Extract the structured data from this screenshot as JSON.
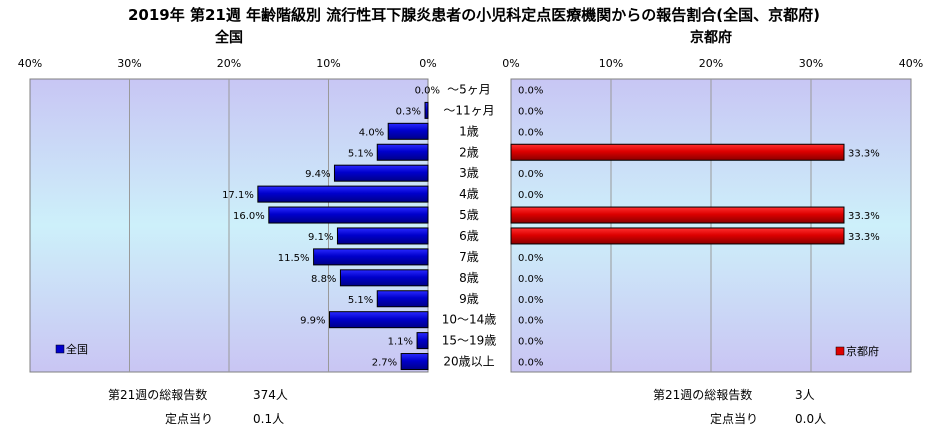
{
  "title": "2019年 第21週 年齢階級別 流行性耳下腺炎患者の小児科定点医療機関からの報告割合(全国、京都府)",
  "chart_data": {
    "type": "bar",
    "orientation": "horizontal",
    "categories": [
      "～5ヶ月",
      "～11ヶ月",
      "1歳",
      "2歳",
      "3歳",
      "4歳",
      "5歳",
      "6歳",
      "7歳",
      "8歳",
      "9歳",
      "10～14歳",
      "15～19歳",
      "20歳以上"
    ],
    "x_ticks": [
      "40%",
      "30%",
      "20%",
      "10%",
      "0%",
      "0%",
      "10%",
      "20%",
      "30%",
      "40%"
    ],
    "xlim": [
      0,
      40
    ],
    "grid": true,
    "panels": [
      {
        "title": "全国",
        "direction": "left",
        "legend": "全国",
        "legend_position": "bottom-left",
        "color": "#0000cc",
        "values": [
          0.0,
          0.3,
          4.0,
          5.1,
          9.4,
          17.1,
          16.0,
          9.1,
          11.5,
          8.8,
          5.1,
          9.9,
          1.1,
          2.7
        ],
        "labels": [
          "0.0%",
          "0.3%",
          "4.0%",
          "5.1%",
          "9.4%",
          "17.1%",
          "16.0%",
          "9.1%",
          "11.5%",
          "8.8%",
          "5.1%",
          "9.9%",
          "1.1%",
          "2.7%"
        ]
      },
      {
        "title": "京都府",
        "direction": "right",
        "legend": "京都府",
        "legend_position": "bottom-right",
        "color": "#dd0000",
        "values": [
          0.0,
          0.0,
          0.0,
          33.3,
          0.0,
          0.0,
          33.3,
          33.3,
          0.0,
          0.0,
          0.0,
          0.0,
          0.0,
          0.0
        ],
        "labels": [
          "0.0%",
          "0.0%",
          "0.0%",
          "33.3%",
          "0.0%",
          "0.0%",
          "33.3%",
          "33.3%",
          "0.0%",
          "0.0%",
          "0.0%",
          "0.0%",
          "0.0%",
          "0.0%"
        ]
      }
    ]
  },
  "summary": {
    "national": {
      "total_label": "第21週の総報告数",
      "total_value": "374人",
      "per_site_label": "定点当り",
      "per_site_value": "0.1人"
    },
    "kyoto": {
      "total_label": "第21週の総報告数",
      "total_value": "3人",
      "per_site_label": "定点当り",
      "per_site_value": "0.0人"
    }
  }
}
